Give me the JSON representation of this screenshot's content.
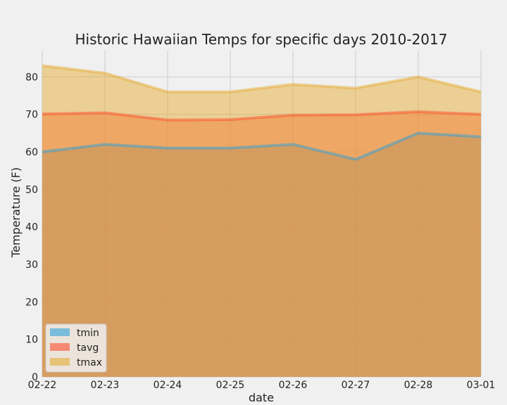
{
  "chart_data": {
    "type": "area",
    "title": "Historic Hawaiian Temps for specific days 2010-2017",
    "xlabel": "date",
    "ylabel": "Temperature (F)",
    "categories": [
      "02-22",
      "02-23",
      "02-24",
      "02-25",
      "02-26",
      "02-27",
      "02-28",
      "03-01"
    ],
    "ylim": [
      0,
      87
    ],
    "yticks": [
      0,
      10,
      20,
      30,
      40,
      50,
      60,
      70,
      80
    ],
    "stacked": false,
    "grid": true,
    "legend_position": "lower-left",
    "series": [
      {
        "name": "tmin",
        "values": [
          60,
          62,
          61,
          61,
          62,
          58,
          65,
          64
        ],
        "color": "#30a2da"
      },
      {
        "name": "tavg",
        "values": [
          70.1,
          70.4,
          68.5,
          68.6,
          69.8,
          69.9,
          70.7,
          70.0
        ],
        "color": "#fc4f30"
      },
      {
        "name": "tmax",
        "values": [
          83,
          81,
          76,
          76,
          78,
          77,
          80,
          76
        ],
        "color": "#e5ae38"
      }
    ]
  }
}
